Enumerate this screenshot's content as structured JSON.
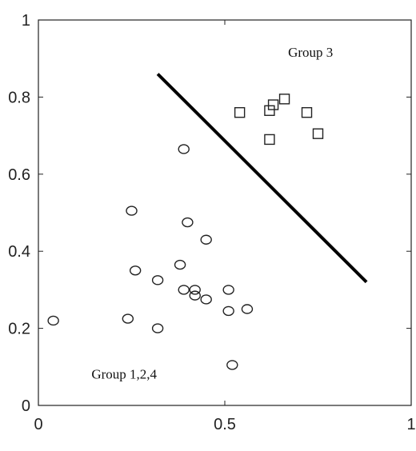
{
  "chart_data": {
    "type": "scatter",
    "title": "",
    "xlabel": "",
    "ylabel": "",
    "xlim": [
      0,
      1
    ],
    "ylim": [
      0,
      1
    ],
    "grid": false,
    "x_ticks": [
      {
        "value": 0,
        "label": "0"
      },
      {
        "value": 0.5,
        "label": "0.5"
      },
      {
        "value": 1,
        "label": "1"
      }
    ],
    "y_ticks": [
      {
        "value": 0,
        "label": "0"
      },
      {
        "value": 0.2,
        "label": "0.2"
      },
      {
        "value": 0.4,
        "label": "0.4"
      },
      {
        "value": 0.6,
        "label": "0.6"
      },
      {
        "value": 0.8,
        "label": "0.8"
      },
      {
        "value": 1,
        "label": "1"
      }
    ],
    "series": [
      {
        "marker": "circle",
        "color": "#222222",
        "points": [
          {
            "x": 0.04,
            "y": 0.22
          },
          {
            "x": 0.24,
            "y": 0.225
          },
          {
            "x": 0.25,
            "y": 0.505
          },
          {
            "x": 0.26,
            "y": 0.35
          },
          {
            "x": 0.32,
            "y": 0.2
          },
          {
            "x": 0.32,
            "y": 0.325
          },
          {
            "x": 0.38,
            "y": 0.365
          },
          {
            "x": 0.39,
            "y": 0.665
          },
          {
            "x": 0.39,
            "y": 0.3
          },
          {
            "x": 0.4,
            "y": 0.475
          },
          {
            "x": 0.42,
            "y": 0.3
          },
          {
            "x": 0.42,
            "y": 0.285
          },
          {
            "x": 0.45,
            "y": 0.43
          },
          {
            "x": 0.45,
            "y": 0.275
          },
          {
            "x": 0.51,
            "y": 0.3
          },
          {
            "x": 0.51,
            "y": 0.245
          },
          {
            "x": 0.52,
            "y": 0.105
          },
          {
            "x": 0.56,
            "y": 0.25
          }
        ]
      },
      {
        "marker": "square",
        "color": "#222222",
        "points": [
          {
            "x": 0.54,
            "y": 0.76
          },
          {
            "x": 0.62,
            "y": 0.765
          },
          {
            "x": 0.63,
            "y": 0.78
          },
          {
            "x": 0.62,
            "y": 0.69
          },
          {
            "x": 0.66,
            "y": 0.795
          },
          {
            "x": 0.72,
            "y": 0.76
          },
          {
            "x": 0.75,
            "y": 0.705
          }
        ]
      }
    ],
    "lines": [
      {
        "x": [
          0.32,
          0.88
        ],
        "y": [
          0.86,
          0.32
        ],
        "color": "#000000"
      }
    ],
    "annotations": [
      {
        "text": "Group 3",
        "x": 0.73,
        "y": 0.905
      },
      {
        "text": "Group 1,2,4",
        "x": 0.23,
        "y": 0.07
      }
    ]
  }
}
